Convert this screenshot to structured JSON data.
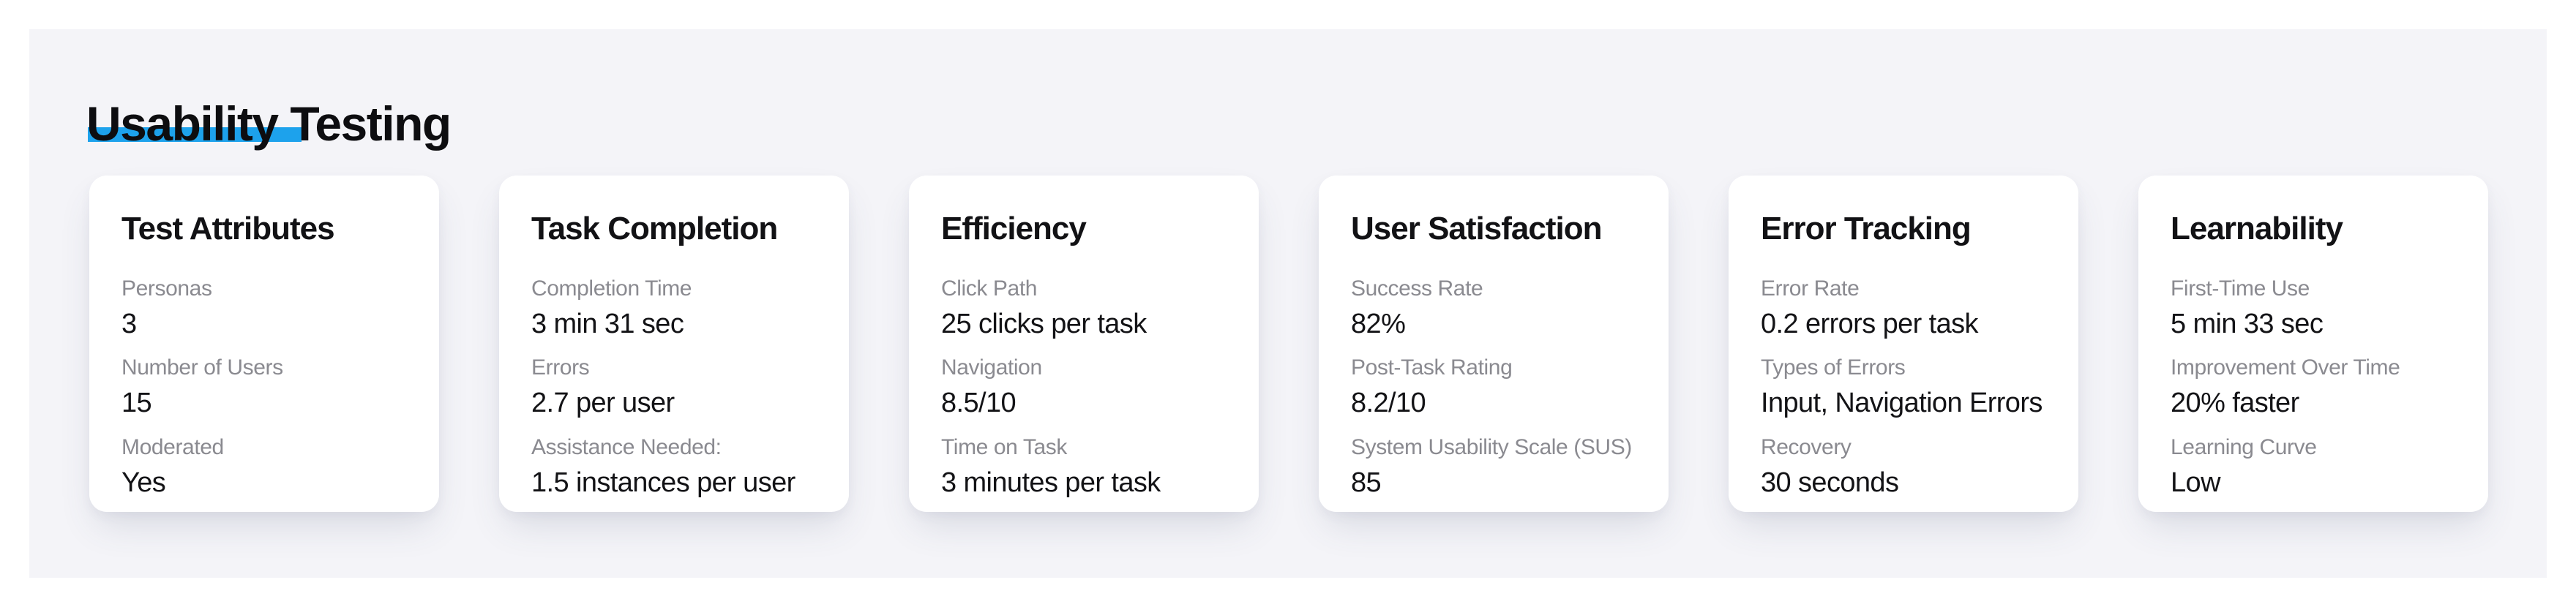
{
  "page": {
    "title": "Usability Testing"
  },
  "colors": {
    "highlight": "#1da2ec",
    "panel_bg": "#f4f4f8",
    "card_bg": "#ffffff",
    "label": "#8a8a90",
    "text": "#131316"
  },
  "cards": [
    {
      "title": "Test Attributes",
      "metrics": [
        {
          "label": "Personas",
          "value": "3"
        },
        {
          "label": "Number of Users",
          "value": "15"
        },
        {
          "label": "Moderated",
          "value": "Yes"
        }
      ]
    },
    {
      "title": "Task Completion",
      "metrics": [
        {
          "label": "Completion Time",
          "value": "3 min 31 sec"
        },
        {
          "label": "Errors",
          "value": "2.7 per user"
        },
        {
          "label": "Assistance Needed:",
          "value": "1.5 instances per user"
        }
      ]
    },
    {
      "title": "Efficiency",
      "metrics": [
        {
          "label": "Click Path",
          "value": "25 clicks per task"
        },
        {
          "label": "Navigation",
          "value": "8.5/10"
        },
        {
          "label": "Time on Task",
          "value": "3 minutes per task"
        }
      ]
    },
    {
      "title": "User Satisfaction",
      "metrics": [
        {
          "label": "Success Rate",
          "value": "82%"
        },
        {
          "label": "Post-Task Rating",
          "value": "8.2/10"
        },
        {
          "label": "System Usability Scale (SUS)",
          "value": "85"
        }
      ]
    },
    {
      "title": "Error Tracking",
      "metrics": [
        {
          "label": "Error Rate",
          "value": "0.2 errors per task"
        },
        {
          "label": "Types of Errors",
          "value": "Input, Navigation Errors"
        },
        {
          "label": "Recovery",
          "value": "30 seconds"
        }
      ]
    },
    {
      "title": "Learnability",
      "metrics": [
        {
          "label": "First-Time Use",
          "value": "5 min 33 sec"
        },
        {
          "label": "Improvement Over Time",
          "value": "20% faster"
        },
        {
          "label": "Learning Curve",
          "value": "Low"
        }
      ]
    }
  ]
}
